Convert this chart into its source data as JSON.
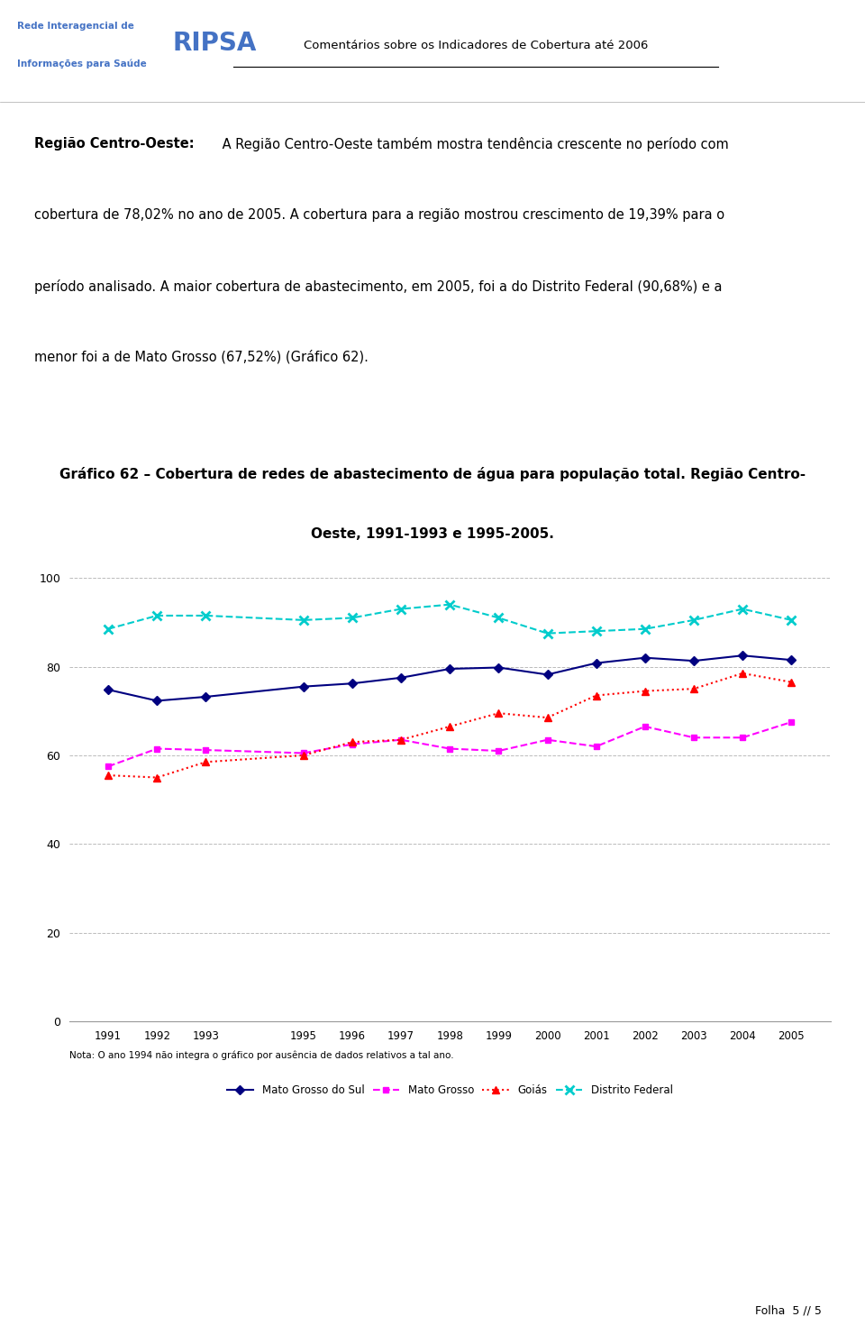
{
  "years": [
    1991,
    1992,
    1993,
    1995,
    1996,
    1997,
    1998,
    1999,
    2000,
    2001,
    2002,
    2003,
    2004,
    2005
  ],
  "mato_grosso_do_sul": [
    74.8,
    72.3,
    73.2,
    75.5,
    76.2,
    77.5,
    79.5,
    79.8,
    78.2,
    80.8,
    82.0,
    81.3,
    82.5,
    81.5
  ],
  "mato_grosso": [
    57.5,
    61.5,
    61.2,
    60.5,
    62.5,
    63.5,
    61.5,
    61.0,
    63.5,
    62.0,
    66.5,
    64.0,
    64.0,
    67.5
  ],
  "goias": [
    55.5,
    55.0,
    58.5,
    60.0,
    63.0,
    63.5,
    66.5,
    69.5,
    68.5,
    73.5,
    74.5,
    75.0,
    78.5,
    76.5
  ],
  "distrito_federal": [
    88.5,
    91.5,
    91.5,
    90.5,
    91.0,
    93.0,
    94.0,
    91.0,
    87.5,
    88.0,
    88.5,
    90.5,
    93.0,
    90.5
  ],
  "ylim": [
    0,
    100
  ],
  "yticks": [
    0,
    20,
    40,
    60,
    80,
    100
  ],
  "color_mgs": "#000080",
  "color_mt": "#FF00FF",
  "color_go": "#FF0000",
  "color_df": "#00CCCC",
  "header_text": "Comentários sobre os Indicadores de Cobertura até 2006",
  "body_bold": "Região Centro-Oeste:",
  "body_rest": " A Região Centro-Oeste também mostra tendência crescente no período com cobertura de 78,02% no ano de 2005. A cobertura para a região mostrou crescimento de 19,39% para o período analisado. A maior cobertura de abastecimento, em 2005, foi a do Distrito Federal (90,68%) e a menor foi a de Mato Grosso (67,52%) (Gráfico 62).",
  "chart_title_line1": "Gráfico 62 – Cobertura de redes de abastecimento de água para população total. Região Centro-",
  "chart_title_line2": "Oeste, 1991-1993 e 1995-2005.",
  "note": "Nota: O ano 1994 não integra o gráfico por ausência de dados relativos a tal ano.",
  "legend_mgs": "Mato Grosso do Sul",
  "legend_mt": "Mato Grosso",
  "legend_go": "Goiás",
  "legend_df": "Distrito Federal",
  "background_color": "#FFFFFF",
  "ripsa_text1": "Rede Interagencial de",
  "ripsa_text2": "Informações para Saúde",
  "ripsa_ripsa": "RIPSA",
  "footer": "Folha  5 // 5"
}
